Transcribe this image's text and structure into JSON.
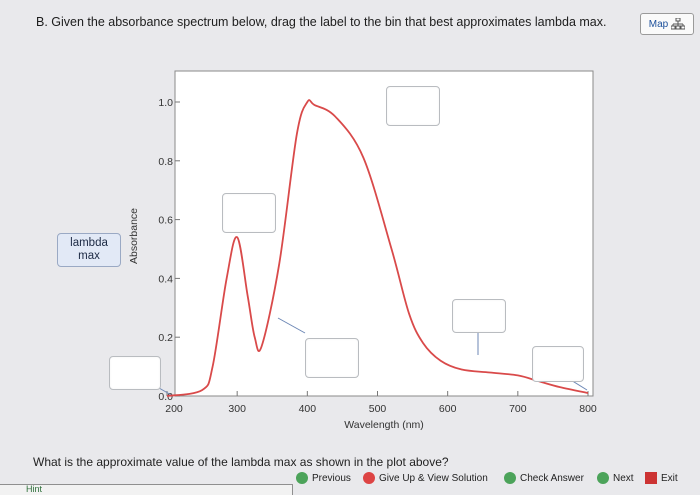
{
  "question": {
    "title": "B. Given the absorbance spectrum below, drag the label to the bin that best approximates lambda max."
  },
  "map_button": {
    "label": "Map",
    "icon": "sitemap-icon"
  },
  "chart_data": {
    "type": "line",
    "xlabel": "Wavelength (nm)",
    "ylabel": "Absorbance",
    "xlim": [
      200,
      800
    ],
    "ylim": [
      0.0,
      1.0
    ],
    "x_ticks": [
      "200",
      "300",
      "400",
      "500",
      "600",
      "700",
      "800"
    ],
    "y_ticks": [
      "0.0",
      "0.2",
      "0.4",
      "0.6",
      "0.8",
      "1.0"
    ],
    "series": [
      {
        "color": "#d94a4a",
        "x": [
          200,
          250,
          265,
          285,
          300,
          315,
          325,
          335,
          360,
          385,
          400,
          410,
          440,
          480,
          520,
          545,
          565,
          590,
          620,
          660,
          700,
          730,
          760,
          800
        ],
        "y": [
          0.0,
          0.02,
          0.1,
          0.4,
          0.54,
          0.34,
          0.2,
          0.17,
          0.45,
          0.89,
          1.0,
          0.99,
          0.95,
          0.81,
          0.5,
          0.28,
          0.18,
          0.12,
          0.09,
          0.08,
          0.07,
          0.05,
          0.03,
          0.01
        ]
      }
    ]
  },
  "drag_label": {
    "line1": "lambda",
    "line2": "max"
  },
  "prompt": {
    "text": "What is the approximate value of the lambda max as shown in the plot above?"
  },
  "nav": {
    "previous": "Previous",
    "give_up": "Give Up & View Solution",
    "check": "Check Answer",
    "next": "Next",
    "exit": "Exit"
  },
  "hint": {
    "label": "Hint"
  }
}
